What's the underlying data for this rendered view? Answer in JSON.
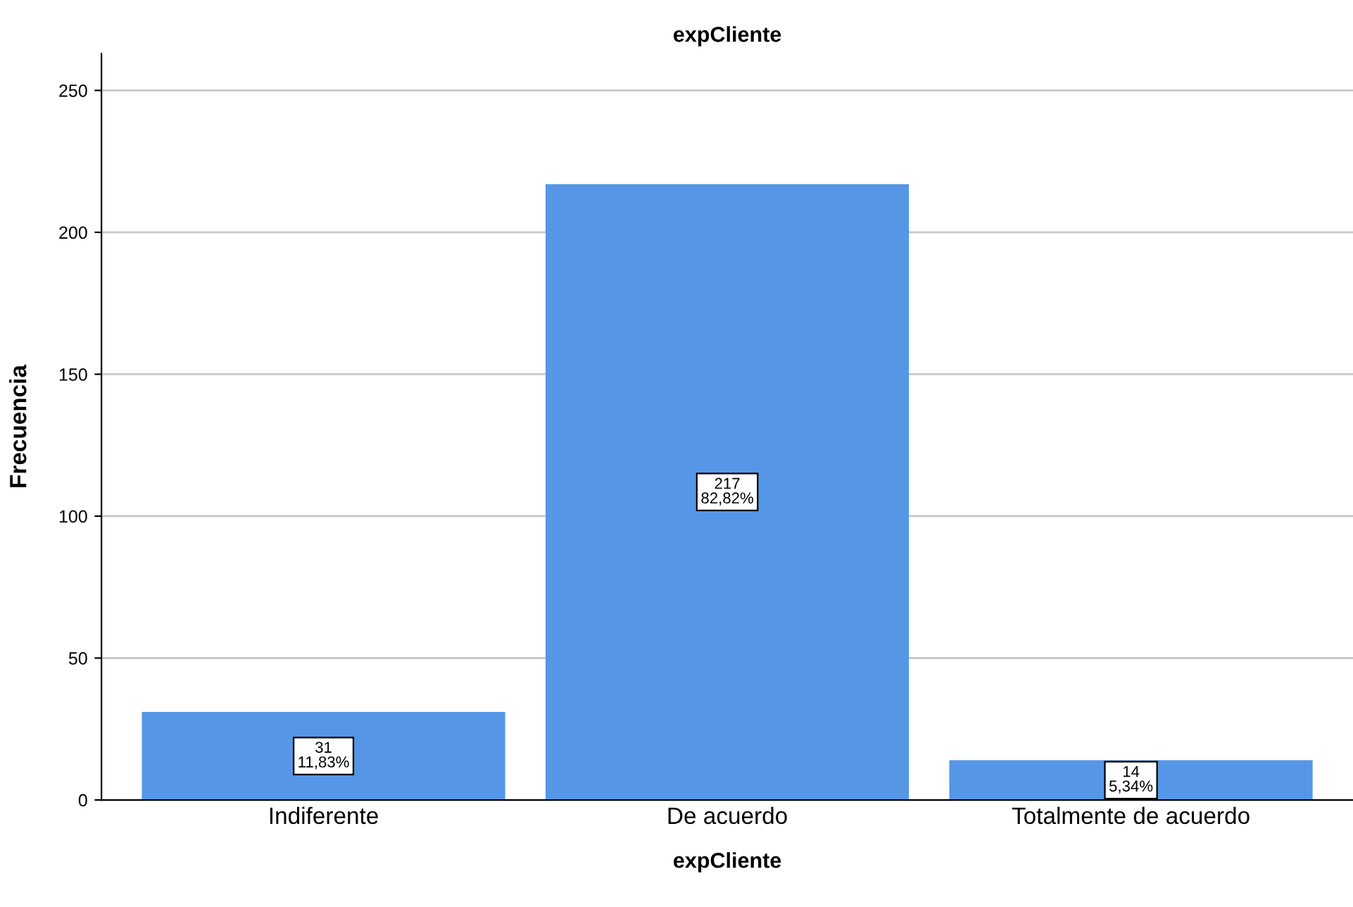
{
  "chart_data": {
    "type": "bar",
    "title": "expCliente",
    "xlabel": "expCliente",
    "ylabel": "Frecuencia",
    "categories": [
      "Indiferente",
      "De acuerdo",
      "Totalmente de acuerdo"
    ],
    "values": [
      31,
      217,
      14
    ],
    "value_labels": [
      "31\n11,83%",
      "217\n82,82%",
      "14\n5,34%"
    ],
    "color": "#5596e6",
    "ylim": [
      0,
      263
    ],
    "yticks": [
      0,
      50,
      100,
      150,
      200,
      250
    ],
    "grid": "y",
    "legend": false
  }
}
